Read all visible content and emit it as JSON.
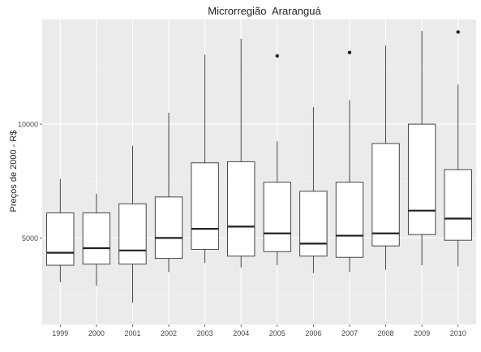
{
  "chart_data": {
    "type": "box",
    "title": "Microrregião  Araranguá",
    "xlabel": "",
    "ylabel": "Preços de 2000 - R$",
    "ylim": [
      1200,
      14600
    ],
    "yticks": [
      5000,
      10000
    ],
    "ytick_labels": [
      "5000",
      "10000"
    ],
    "grid": true,
    "background": "#ebebeb",
    "categories": [
      "1999",
      "2000",
      "2001",
      "2002",
      "2003",
      "2004",
      "2005",
      "2006",
      "2007",
      "2008",
      "2009",
      "2010"
    ],
    "boxes": [
      {
        "category": "1999",
        "whisker_low": 3050,
        "q1": 3800,
        "median": 4350,
        "q3": 6100,
        "whisker_high": 7600,
        "outliers": []
      },
      {
        "category": "2000",
        "whisker_low": 2900,
        "q1": 3850,
        "median": 4550,
        "q3": 6100,
        "whisker_high": 6950,
        "outliers": []
      },
      {
        "category": "2001",
        "whisker_low": 2150,
        "q1": 3850,
        "median": 4450,
        "q3": 6500,
        "whisker_high": 9050,
        "outliers": []
      },
      {
        "category": "2002",
        "whisker_low": 3500,
        "q1": 4100,
        "median": 5000,
        "q3": 6800,
        "whisker_high": 10500,
        "outliers": []
      },
      {
        "category": "2003",
        "whisker_low": 3900,
        "q1": 4500,
        "median": 5400,
        "q3": 8300,
        "whisker_high": 13050,
        "outliers": []
      },
      {
        "category": "2004",
        "whisker_low": 3700,
        "q1": 4200,
        "median": 5500,
        "q3": 8350,
        "whisker_high": 13750,
        "outliers": []
      },
      {
        "category": "2005",
        "whisker_low": 3800,
        "q1": 4400,
        "median": 5200,
        "q3": 7450,
        "whisker_high": 9250,
        "outliers": [
          13000
        ]
      },
      {
        "category": "2006",
        "whisker_low": 3450,
        "q1": 4200,
        "median": 4750,
        "q3": 7050,
        "whisker_high": 10750,
        "outliers": []
      },
      {
        "category": "2007",
        "whisker_low": 3500,
        "q1": 4150,
        "median": 5100,
        "q3": 7450,
        "whisker_high": 11050,
        "outliers": [
          13150
        ]
      },
      {
        "category": "2008",
        "whisker_low": 3600,
        "q1": 4650,
        "median": 5200,
        "q3": 9150,
        "whisker_high": 13450,
        "outliers": []
      },
      {
        "category": "2009",
        "whisker_low": 3800,
        "q1": 5150,
        "median": 6200,
        "q3": 10000,
        "whisker_high": 14100,
        "outliers": []
      },
      {
        "category": "2010",
        "whisker_low": 3750,
        "q1": 4900,
        "median": 5850,
        "q3": 8000,
        "whisker_high": 11750,
        "outliers": [
          14050
        ]
      }
    ]
  }
}
